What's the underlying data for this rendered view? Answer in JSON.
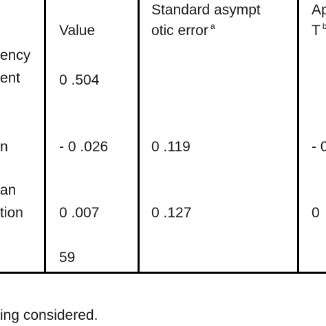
{
  "table": {
    "header": {
      "row_label_col": "",
      "value": "Value",
      "std_error_line1": "Standard asympt",
      "std_error_line2": "otic error",
      "std_error_marker": "a",
      "approx_t_line1": "Ap",
      "approx_t_line2": "T",
      "approx_t_marker": "b"
    },
    "rows": [
      {
        "label_line1": "ency",
        "label_line2": "ent",
        "value": "0 .504",
        "std_error": "",
        "approx_t": ""
      },
      {
        "label_line1": "n",
        "value": "- 0 .026",
        "std_error": "0 .119",
        "approx_t": "- 0"
      },
      {
        "label_line1": "an",
        "label_line2": "tion",
        "value": "0 .007",
        "std_error": "0 .127",
        "approx_t": "0"
      },
      {
        "label_line1": "",
        "value": "59",
        "std_error": "",
        "approx_t": ""
      }
    ]
  },
  "footnote": "ing considered."
}
